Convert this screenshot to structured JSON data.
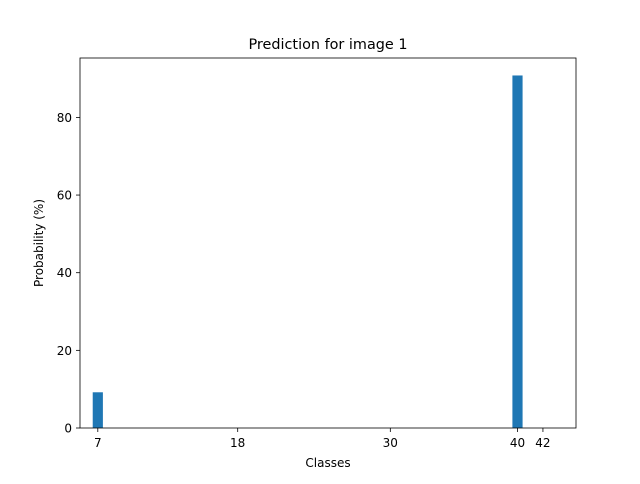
{
  "chart_data": {
    "type": "bar",
    "title": "Prediction for image 1",
    "xlabel": "Classes",
    "ylabel": "Probability (%)",
    "x": [
      7,
      40
    ],
    "values": [
      9.2,
      90.8
    ],
    "xlim": [
      5.6,
      44.6
    ],
    "ylim": [
      0,
      95.3
    ],
    "xticks": [
      7,
      18,
      30,
      40,
      42
    ],
    "yticks": [
      0,
      20,
      40,
      60,
      80
    ],
    "bar_width": 0.8,
    "bar_color": "#1f77b4",
    "grid": false,
    "legend": "none"
  }
}
